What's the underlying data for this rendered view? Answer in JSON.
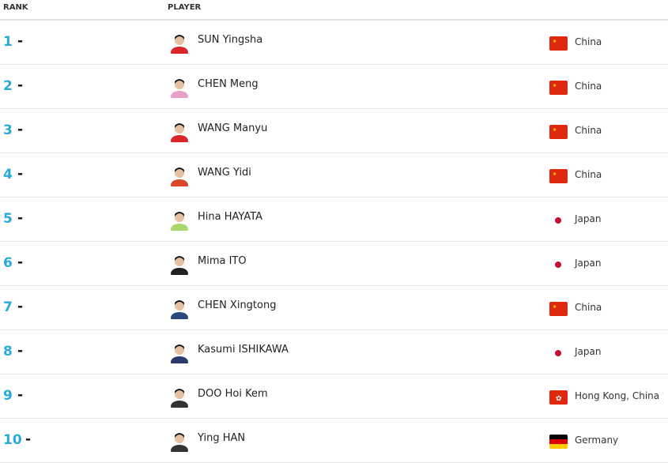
{
  "header": {
    "rank": "RANK",
    "player": "PLAYER"
  },
  "colors": {
    "rank": "#2aaad8"
  },
  "rows": [
    {
      "rank": "1",
      "change": "-",
      "name": "SUN Yingsha",
      "country": "China",
      "flag": "cn",
      "shirt": "#d9262a"
    },
    {
      "rank": "2",
      "change": "-",
      "name": "CHEN Meng",
      "country": "China",
      "flag": "cn",
      "shirt": "#e8a0c8"
    },
    {
      "rank": "3",
      "change": "-",
      "name": "WANG Manyu",
      "country": "China",
      "flag": "cn",
      "shirt": "#d9262a"
    },
    {
      "rank": "4",
      "change": "-",
      "name": "WANG Yidi",
      "country": "China",
      "flag": "cn",
      "shirt": "#d9462a"
    },
    {
      "rank": "5",
      "change": "-",
      "name": "Hina HAYATA",
      "country": "Japan",
      "flag": "jp",
      "shirt": "#a8d86a"
    },
    {
      "rank": "6",
      "change": "-",
      "name": "Mima ITO",
      "country": "Japan",
      "flag": "jp",
      "shirt": "#222222"
    },
    {
      "rank": "7",
      "change": "-",
      "name": "CHEN Xingtong",
      "country": "China",
      "flag": "cn",
      "shirt": "#2a4a7a"
    },
    {
      "rank": "8",
      "change": "-",
      "name": "Kasumi ISHIKAWA",
      "country": "Japan",
      "flag": "jp",
      "shirt": "#2a3a6a"
    },
    {
      "rank": "9",
      "change": "-",
      "name": "DOO Hoi Kem",
      "country": "Hong Kong, China",
      "flag": "hk",
      "shirt": "#333333"
    },
    {
      "rank": "10",
      "change": "-",
      "name": "Ying HAN",
      "country": "Germany",
      "flag": "de",
      "shirt": "#333333"
    }
  ]
}
